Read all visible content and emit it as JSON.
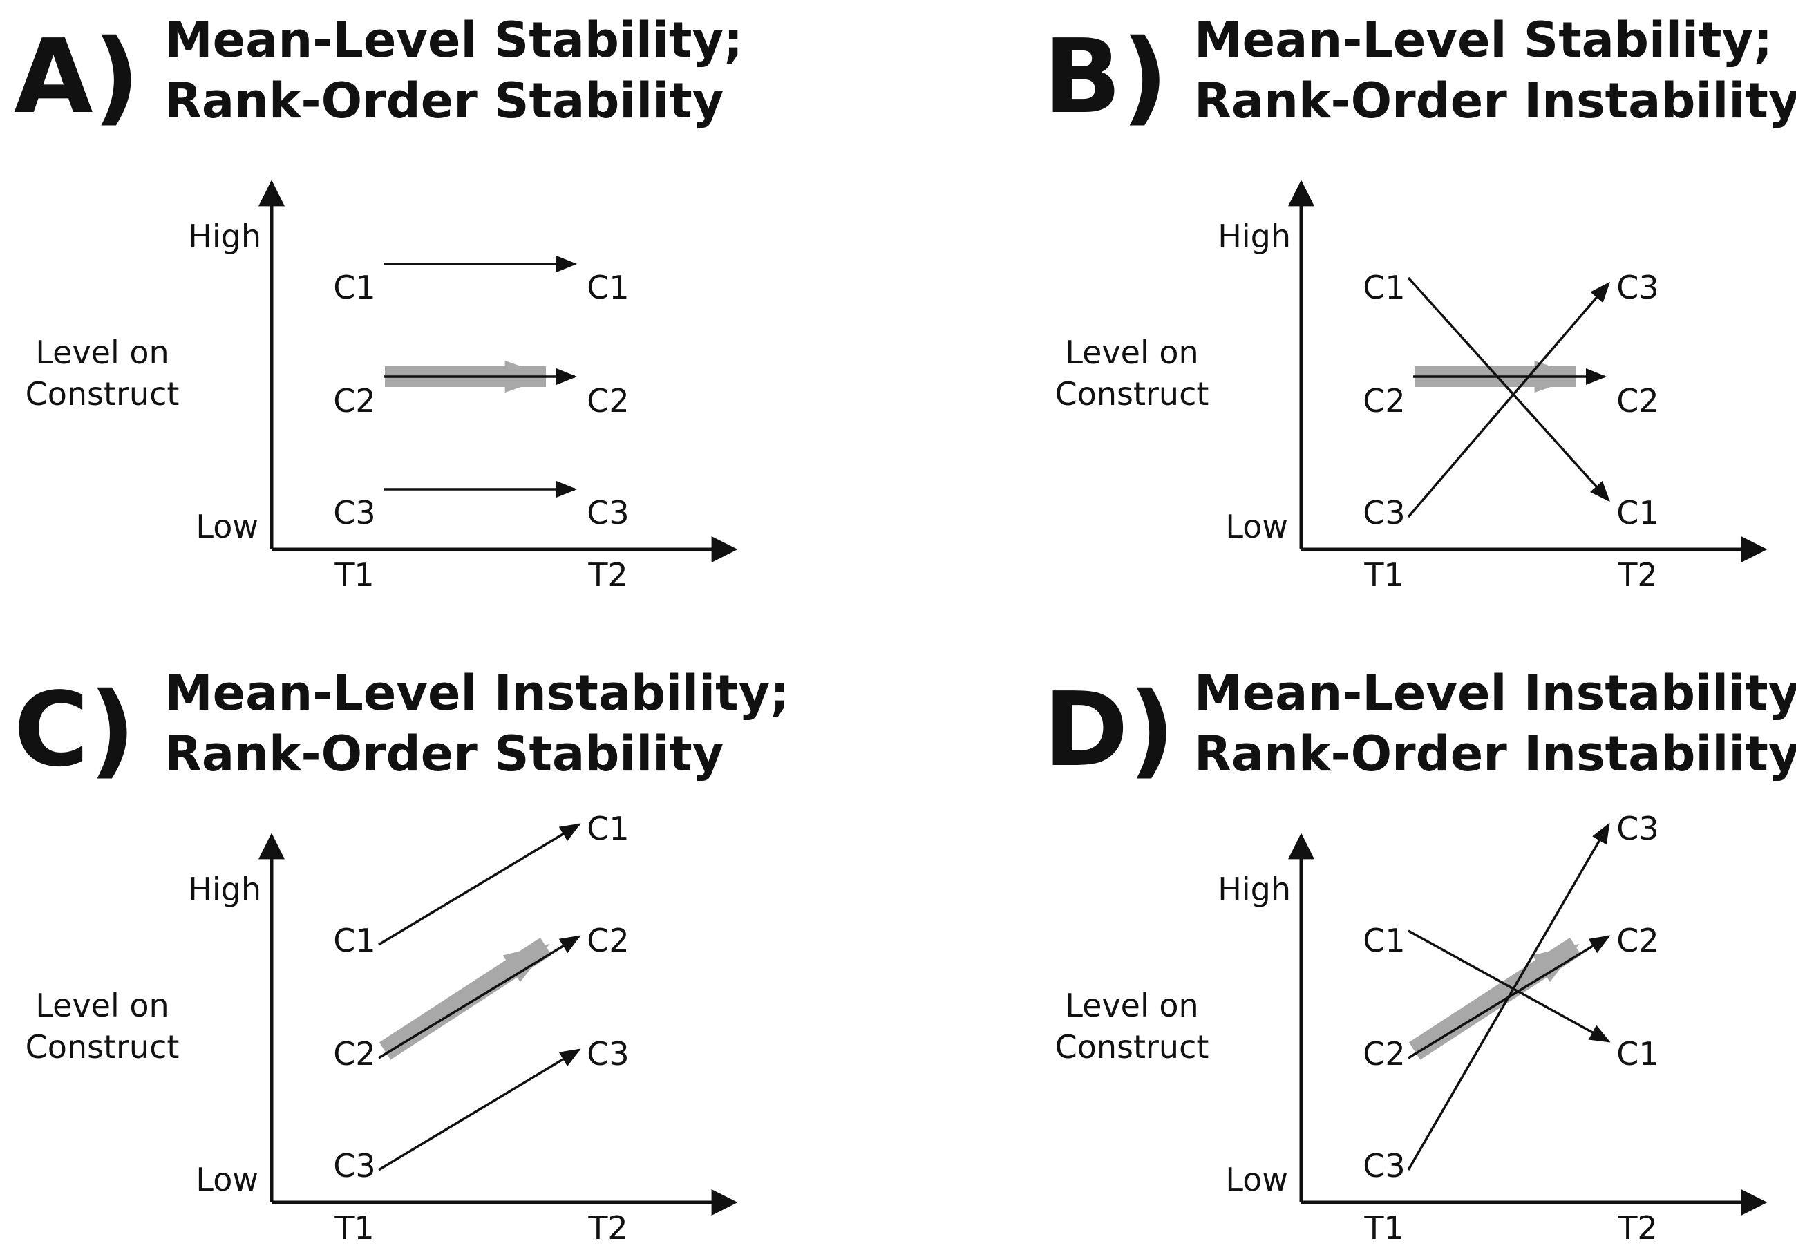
{
  "panels": [
    {
      "letter": "A)",
      "title_line1": "Mean-Level Stability;",
      "title_line2": "Rank-Order Stability",
      "y_label_line1": "Level on",
      "y_label_line2": "Construct",
      "y_high": "High",
      "y_low": "Low",
      "x_t1": "T1",
      "x_t2": "T2",
      "cases": [
        {
          "name_t1": "C1",
          "name_t2": "C1",
          "level_t1": 3,
          "level_t2": 3
        },
        {
          "name_t1": "C2",
          "name_t2": "C2",
          "level_t1": 2,
          "level_t2": 2
        },
        {
          "name_t1": "C3",
          "name_t2": "C3",
          "level_t1": 1,
          "level_t2": 1
        }
      ],
      "mean": {
        "level_t1": 2,
        "level_t2": 2
      }
    },
    {
      "letter": "B)",
      "title_line1": "Mean-Level Stability;",
      "title_line2": "Rank-Order Instability",
      "y_label_line1": "Level on",
      "y_label_line2": "Construct",
      "y_high": "High",
      "y_low": "Low",
      "x_t1": "T1",
      "x_t2": "T2",
      "cases": [
        {
          "name_t1": "C1",
          "name_t2": "C1",
          "level_t1": 3,
          "level_t2": 1
        },
        {
          "name_t1": "C2",
          "name_t2": "C2",
          "level_t1": 2,
          "level_t2": 2
        },
        {
          "name_t1": "C3",
          "name_t2": "C3",
          "level_t1": 1,
          "level_t2": 3
        }
      ],
      "mean": {
        "level_t1": 2,
        "level_t2": 2
      }
    },
    {
      "letter": "C)",
      "title_line1": "Mean-Level Instability;",
      "title_line2": "Rank-Order Stability",
      "y_label_line1": "Level on",
      "y_label_line2": "Construct",
      "y_high": "High",
      "y_low": "Low",
      "x_t1": "T1",
      "x_t2": "T2",
      "cases": [
        {
          "name_t1": "C1",
          "name_t2": "C1",
          "level_t1": 3,
          "level_t2": 4
        },
        {
          "name_t1": "C2",
          "name_t2": "C2",
          "level_t1": 2,
          "level_t2": 3
        },
        {
          "name_t1": "C3",
          "name_t2": "C3",
          "level_t1": 1,
          "level_t2": 2
        }
      ],
      "mean": {
        "level_t1": 2,
        "level_t2": 3
      }
    },
    {
      "letter": "D)",
      "title_line1": "Mean-Level Instability;",
      "title_line2": "Rank-Order Instability",
      "y_label_line1": "Level on",
      "y_label_line2": "Construct",
      "y_high": "High",
      "y_low": "Low",
      "x_t1": "T1",
      "x_t2": "T2",
      "cases": [
        {
          "name_t1": "C1",
          "name_t2": "C1",
          "level_t1": 3,
          "level_t2": 2
        },
        {
          "name_t1": "C2",
          "name_t2": "C2",
          "level_t1": 2,
          "level_t2": 3
        },
        {
          "name_t1": "C3",
          "name_t2": "C3",
          "level_t1": 1,
          "level_t2": 4
        }
      ],
      "mean": {
        "level_t1": 2,
        "level_t2": 3
      }
    }
  ],
  "colors": {
    "ink": "#111111",
    "mean_arrow": "#a8a8a8",
    "background": "#ffffff"
  }
}
